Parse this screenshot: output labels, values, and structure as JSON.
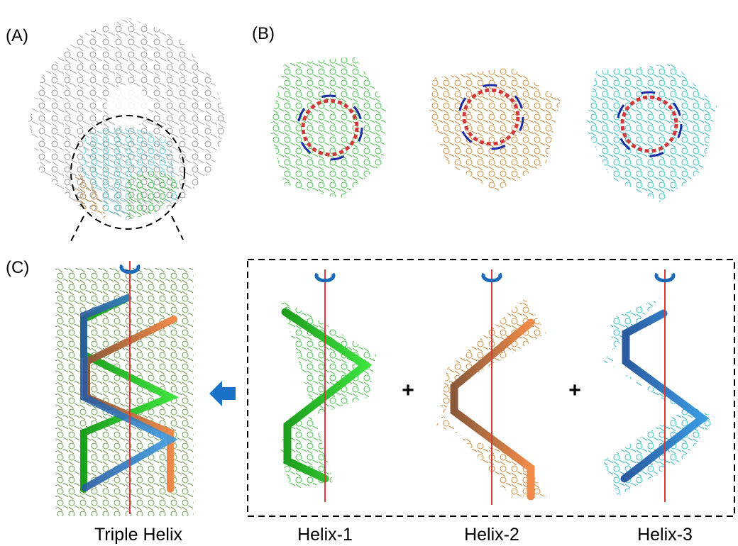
{
  "panels": {
    "a": {
      "label": "(A)"
    },
    "b": {
      "label": "(B)"
    },
    "c": {
      "label": "(C)"
    }
  },
  "operators": [
    "+",
    "+"
  ],
  "captions": [
    "Triple Helix",
    "Helix-1",
    "Helix-2",
    "Helix-3"
  ]
}
